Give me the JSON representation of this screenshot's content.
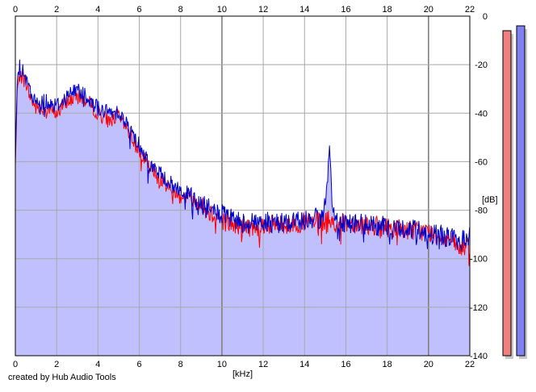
{
  "app": {
    "credit": "created by Hub Audio Tools"
  },
  "chart_data": {
    "type": "area",
    "xlabel": "[kHz]",
    "ylabel": "[dB]",
    "xlim": [
      0,
      22
    ],
    "ylim": [
      -140,
      0
    ],
    "xticks": [
      0,
      2,
      4,
      6,
      8,
      10,
      12,
      14,
      16,
      18,
      20,
      22
    ],
    "yticks": [
      0,
      -20,
      -40,
      -60,
      -80,
      -100,
      -120,
      -140
    ],
    "grid": true,
    "fill_color": "#c0c0ff",
    "series": [
      {
        "color": "#ff0000",
        "x": [
          0,
          0.1,
          0.2,
          0.3,
          0.5,
          0.7,
          1,
          1.5,
          2,
          2.5,
          3,
          3.5,
          4,
          4.5,
          5,
          5.5,
          6,
          6.5,
          7,
          7.5,
          8,
          8.5,
          9,
          9.5,
          10,
          10.5,
          11,
          11.5,
          12,
          13,
          14,
          15,
          15.2,
          15.5,
          16,
          17,
          18,
          19,
          20,
          21,
          21.5,
          22
        ],
        "y": [
          -62,
          -28,
          -24,
          -25,
          -27,
          -33,
          -38,
          -38,
          -40,
          -35,
          -33,
          -35,
          -40,
          -43,
          -41,
          -48,
          -55,
          -63,
          -67,
          -71,
          -74,
          -75,
          -78,
          -81,
          -84,
          -86,
          -87,
          -87,
          -86,
          -86,
          -85,
          -85,
          -84,
          -86,
          -85,
          -86,
          -87,
          -88,
          -89,
          -92,
          -96,
          -94
        ]
      },
      {
        "color": "#0000cc",
        "x": [
          0,
          0.1,
          0.2,
          0.3,
          0.5,
          0.7,
          1,
          1.5,
          2,
          2.5,
          3,
          3.5,
          4,
          4.5,
          5,
          5.5,
          6,
          6.5,
          7,
          7.5,
          8,
          8.5,
          9,
          9.5,
          10,
          10.5,
          11,
          11.5,
          12,
          13,
          14,
          14.9,
          15.1,
          15.2,
          15.3,
          15.5,
          16,
          17,
          18,
          19,
          20,
          21,
          21.5,
          22
        ],
        "y": [
          -59,
          -25,
          -21,
          -22,
          -26,
          -31,
          -36,
          -35,
          -37,
          -33,
          -30,
          -33,
          -38,
          -40,
          -39,
          -46,
          -53,
          -61,
          -65,
          -69,
          -72,
          -74,
          -78,
          -80,
          -82,
          -84,
          -85,
          -85,
          -85,
          -85,
          -84,
          -83,
          -70,
          -56,
          -72,
          -84,
          -85,
          -86,
          -87,
          -88,
          -89,
          -91,
          -93,
          -91
        ]
      }
    ],
    "meters": [
      {
        "color": "#f08080",
        "level_db": -6
      },
      {
        "color": "#8080f0",
        "level_db": -4
      }
    ]
  }
}
